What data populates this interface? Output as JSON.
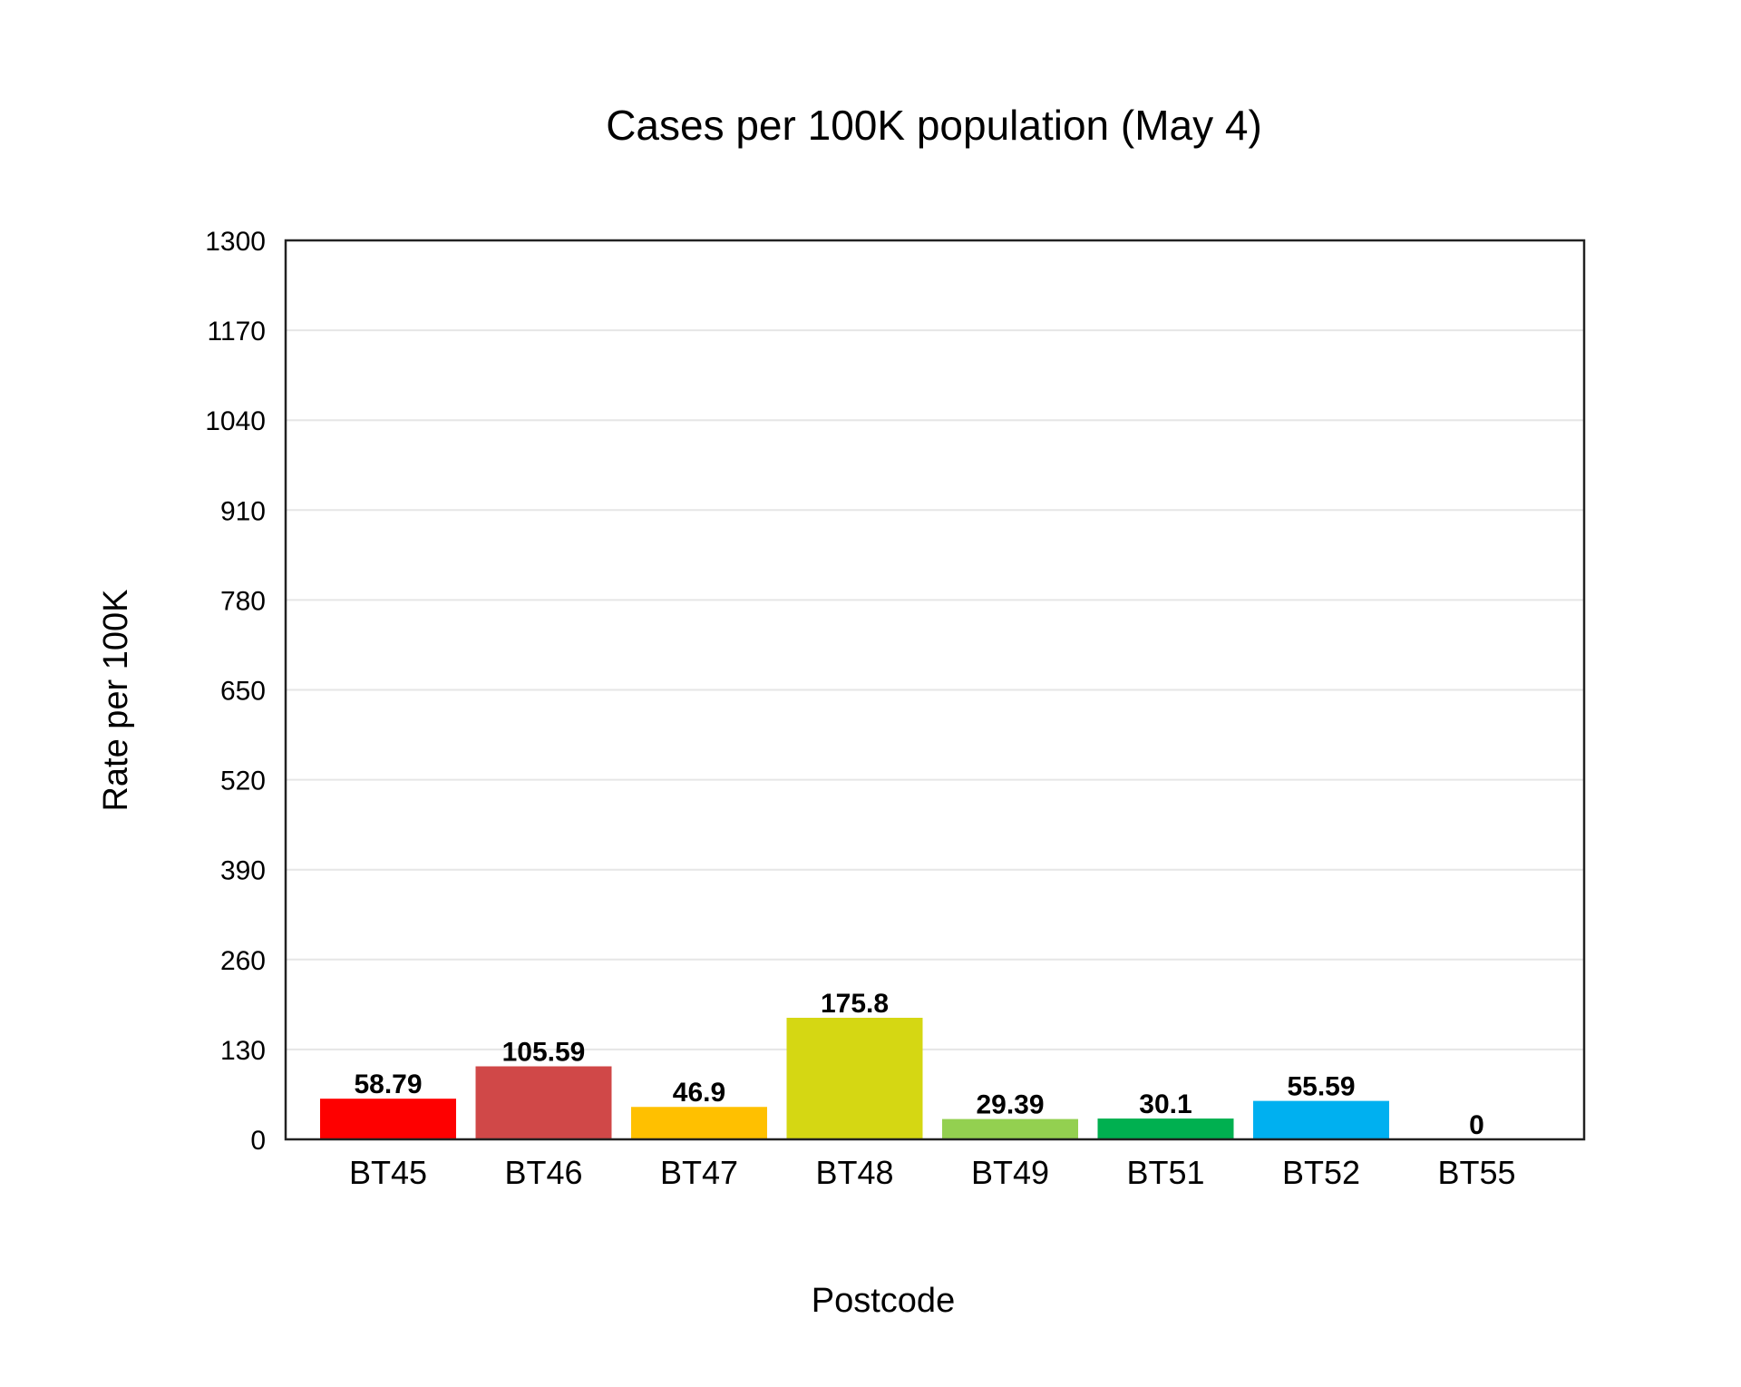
{
  "chart_data": {
    "type": "bar",
    "title": "Cases per 100K population (May 4)",
    "xlabel": "Postcode",
    "ylabel": "Rate per 100K",
    "categories": [
      "BT45",
      "BT46",
      "BT47",
      "BT48",
      "BT49",
      "BT51",
      "BT52",
      "BT55"
    ],
    "values": [
      58.79,
      105.59,
      46.9,
      175.8,
      29.39,
      30.1,
      55.59,
      0
    ],
    "data_labels": [
      "58.79",
      "105.59",
      "46.9",
      "175.8",
      "29.39",
      "30.1",
      "55.59",
      "0"
    ],
    "colors": [
      "#fe0000",
      "#d04848",
      "#ffc000",
      "#d5d713",
      "#93d050",
      "#00b050",
      "#00b0f0",
      "#002060"
    ],
    "ylim": [
      0,
      1300
    ],
    "yticks": [
      0,
      130,
      260,
      390,
      520,
      650,
      780,
      910,
      1040,
      1170,
      1300
    ],
    "grid": true,
    "legend": "none"
  }
}
